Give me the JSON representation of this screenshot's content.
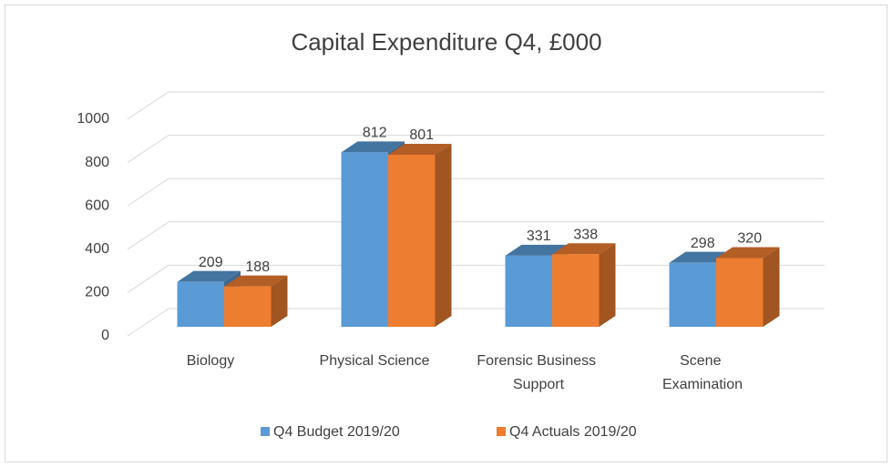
{
  "chart_data": {
    "type": "bar3d",
    "title": "Capital Expenditure Q4, £000",
    "categories": [
      "Biology",
      "Physical Science",
      "Forensic Business Support",
      "Scene Examination"
    ],
    "series": [
      {
        "name": "Q4 Budget 2019/20",
        "color": "#5b9bd5",
        "values": [
          209,
          812,
          331,
          298
        ]
      },
      {
        "name": "Q4 Actuals 2019/20",
        "color": "#ed7d31",
        "values": [
          188,
          801,
          338,
          320
        ]
      }
    ],
    "ylim": [
      0,
      1000
    ],
    "yticks": [
      0,
      200,
      400,
      600,
      800,
      1000
    ],
    "grid": true,
    "legend": "bottom"
  }
}
